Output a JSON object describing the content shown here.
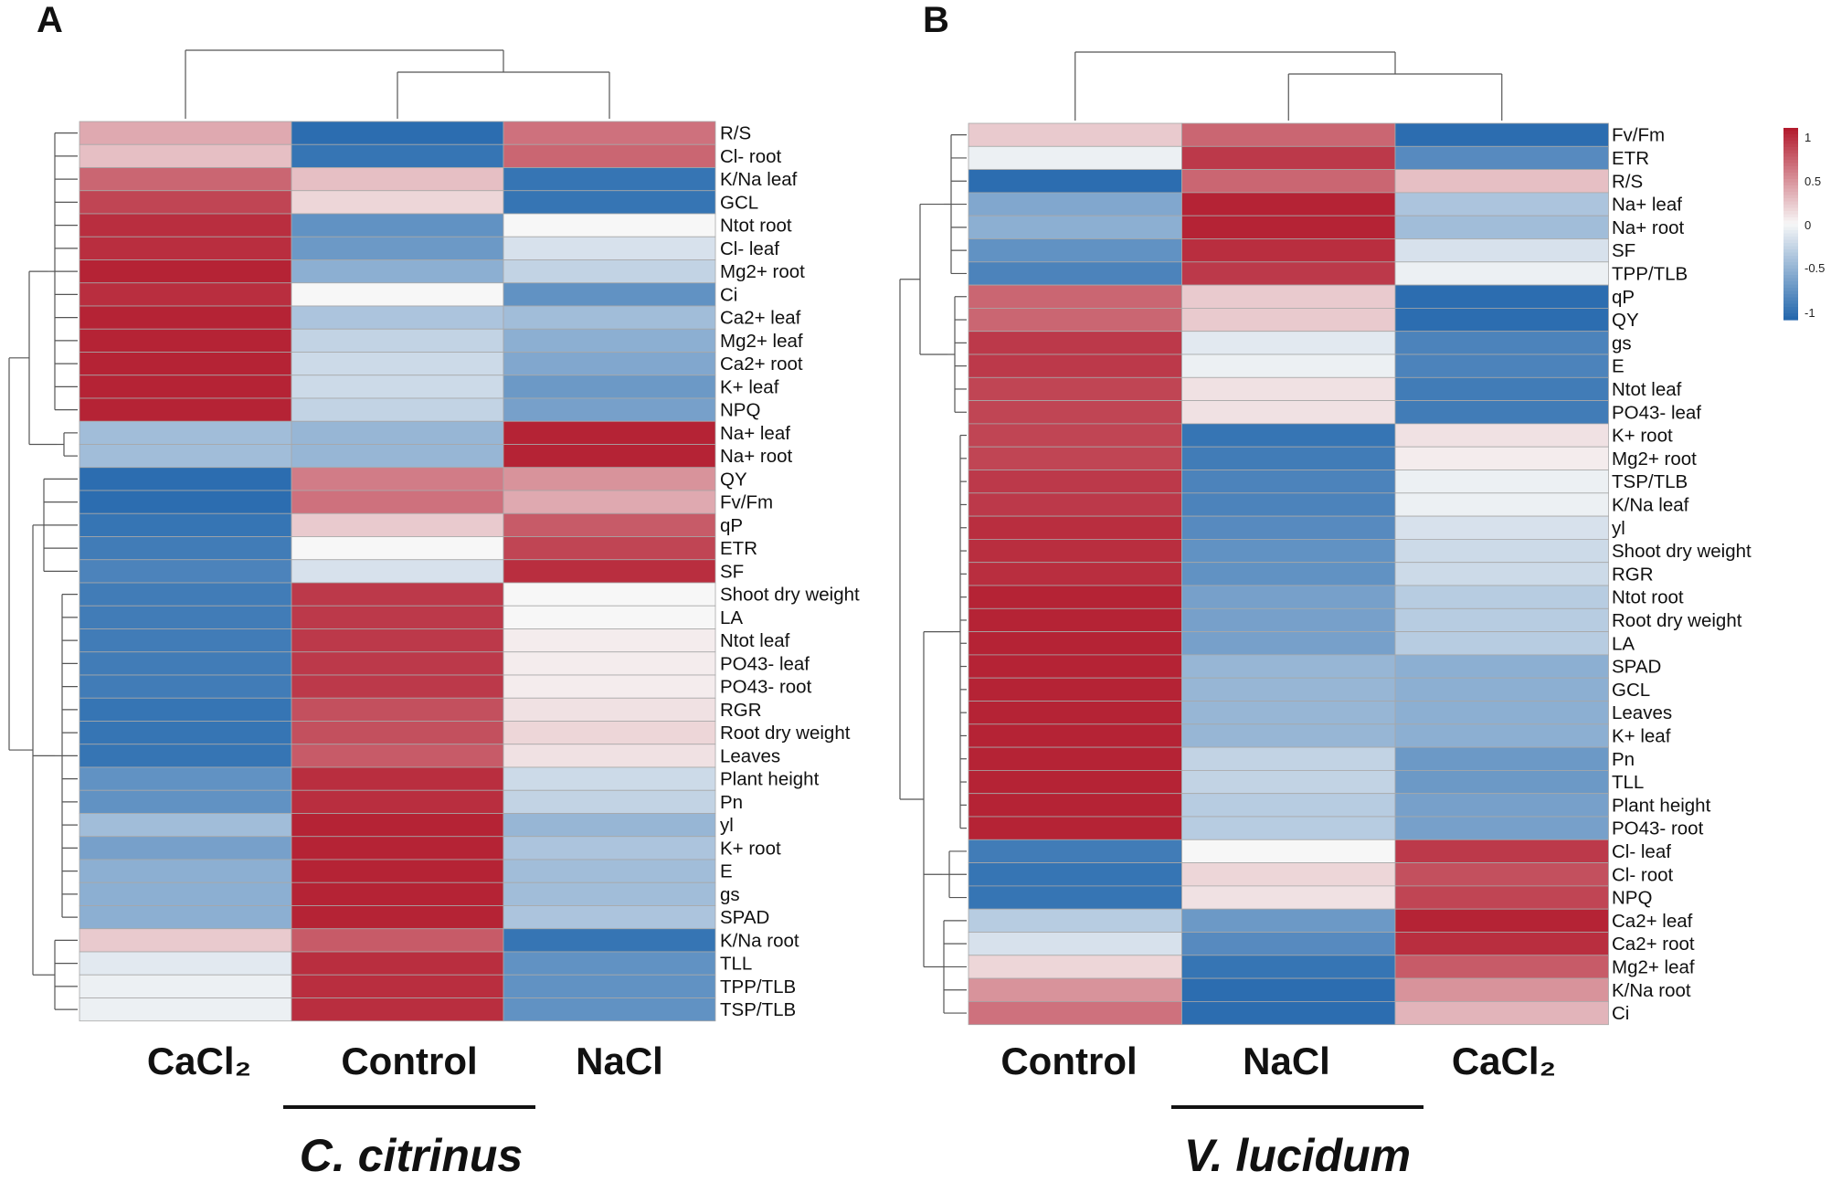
{
  "colors": {
    "low": "#2166ac",
    "mid": "#f7f7f7",
    "high": "#b2182b",
    "grid": "#a8a8a8"
  },
  "chart_data": [
    {
      "type": "heatmap",
      "panel": "A",
      "species": "C. citrinus",
      "columns": [
        "CaCl₂",
        "Control",
        "NaCl"
      ],
      "column_dendrogram": "(CaCl2,(Control,NaCl))",
      "value_range": [
        -1,
        1
      ],
      "rows": [
        {
          "label": "R/S",
          "values": [
            0.35,
            -0.95,
            0.6
          ]
        },
        {
          "label": "Cl- root",
          "values": [
            0.25,
            -0.9,
            0.65
          ]
        },
        {
          "label": "K/Na leaf",
          "values": [
            0.65,
            0.25,
            -0.9
          ]
        },
        {
          "label": "GCL",
          "values": [
            0.8,
            0.15,
            -0.9
          ]
        },
        {
          "label": "Ntot root",
          "values": [
            0.9,
            -0.7,
            0.0
          ]
        },
        {
          "label": "Cl- leaf",
          "values": [
            0.9,
            -0.65,
            -0.15
          ]
        },
        {
          "label": "Mg2+ root",
          "values": [
            0.95,
            -0.5,
            -0.25
          ]
        },
        {
          "label": "Ci",
          "values": [
            0.9,
            0.0,
            -0.7
          ]
        },
        {
          "label": "Ca2+ leaf",
          "values": [
            0.95,
            -0.35,
            -0.4
          ]
        },
        {
          "label": "Mg2+ leaf",
          "values": [
            0.95,
            -0.25,
            -0.5
          ]
        },
        {
          "label": "Ca2+ root",
          "values": [
            0.95,
            -0.2,
            -0.55
          ]
        },
        {
          "label": "K+ leaf",
          "values": [
            0.95,
            -0.2,
            -0.65
          ]
        },
        {
          "label": "NPQ",
          "values": [
            0.95,
            -0.25,
            -0.6
          ]
        },
        {
          "label": "Na+ leaf",
          "values": [
            -0.4,
            -0.45,
            0.95
          ]
        },
        {
          "label": "Na+  root",
          "values": [
            -0.4,
            -0.45,
            0.95
          ]
        },
        {
          "label": "QY",
          "values": [
            -0.95,
            0.55,
            0.45
          ]
        },
        {
          "label": "Fv/Fm",
          "values": [
            -0.95,
            0.6,
            0.35
          ]
        },
        {
          "label": "qP",
          "values": [
            -0.9,
            0.2,
            0.7
          ]
        },
        {
          "label": "ETR",
          "values": [
            -0.85,
            0.0,
            0.8
          ]
        },
        {
          "label": "SF",
          "values": [
            -0.8,
            -0.15,
            0.9
          ]
        },
        {
          "label": "Shoot dry weight",
          "values": [
            -0.85,
            0.85,
            0.0
          ]
        },
        {
          "label": "LA",
          "values": [
            -0.85,
            0.85,
            0.0
          ]
        },
        {
          "label": "Ntot leaf",
          "values": [
            -0.85,
            0.85,
            0.05
          ]
        },
        {
          "label": "PO43- leaf",
          "values": [
            -0.85,
            0.85,
            0.05
          ]
        },
        {
          "label": "PO43- root",
          "values": [
            -0.85,
            0.85,
            0.05
          ]
        },
        {
          "label": "RGR",
          "values": [
            -0.9,
            0.75,
            0.1
          ]
        },
        {
          "label": "Root dry weight",
          "values": [
            -0.9,
            0.75,
            0.15
          ]
        },
        {
          "label": "Leaves",
          "values": [
            -0.9,
            0.7,
            0.1
          ]
        },
        {
          "label": "Plant height",
          "values": [
            -0.7,
            0.9,
            -0.2
          ]
        },
        {
          "label": "Pn",
          "values": [
            -0.7,
            0.9,
            -0.25
          ]
        },
        {
          "label": "yl",
          "values": [
            -0.4,
            0.95,
            -0.45
          ]
        },
        {
          "label": "K+ root",
          "values": [
            -0.6,
            0.95,
            -0.35
          ]
        },
        {
          "label": "E",
          "values": [
            -0.5,
            0.95,
            -0.4
          ]
        },
        {
          "label": "gs",
          "values": [
            -0.5,
            0.95,
            -0.4
          ]
        },
        {
          "label": "SPAD",
          "values": [
            -0.5,
            0.95,
            -0.35
          ]
        },
        {
          "label": "K/Na root",
          "values": [
            0.2,
            0.7,
            -0.9
          ]
        },
        {
          "label": "TLL",
          "values": [
            -0.1,
            0.9,
            -0.7
          ]
        },
        {
          "label": "TPP/TLB",
          "values": [
            -0.05,
            0.9,
            -0.7
          ]
        },
        {
          "label": "TSP/TLB",
          "values": [
            -0.05,
            0.9,
            -0.7
          ]
        }
      ]
    },
    {
      "type": "heatmap",
      "panel": "B",
      "species": "V. lucidum",
      "columns": [
        "Control",
        "NaCl",
        "CaCl₂"
      ],
      "column_dendrogram": "(Control,(NaCl,CaCl2))",
      "value_range": [
        -1,
        1
      ],
      "legend": {
        "ticks": [
          "1",
          "0.5",
          "0",
          "-0.5",
          "-1"
        ]
      },
      "rows": [
        {
          "label": "Fv/Fm",
          "values": [
            0.2,
            0.65,
            -0.95
          ]
        },
        {
          "label": "ETR",
          "values": [
            -0.05,
            0.85,
            -0.75
          ]
        },
        {
          "label": "R/S",
          "values": [
            -0.95,
            0.65,
            0.25
          ]
        },
        {
          "label": "Na+ leaf",
          "values": [
            -0.55,
            0.95,
            -0.35
          ]
        },
        {
          "label": "Na+  root",
          "values": [
            -0.5,
            0.95,
            -0.4
          ]
        },
        {
          "label": "SF",
          "values": [
            -0.7,
            0.9,
            -0.15
          ]
        },
        {
          "label": "TPP/TLB",
          "values": [
            -0.8,
            0.85,
            -0.05
          ]
        },
        {
          "label": "qP",
          "values": [
            0.65,
            0.2,
            -0.95
          ]
        },
        {
          "label": "QY",
          "values": [
            0.65,
            0.2,
            -0.95
          ]
        },
        {
          "label": "gs",
          "values": [
            0.85,
            -0.1,
            -0.8
          ]
        },
        {
          "label": "E",
          "values": [
            0.85,
            -0.05,
            -0.8
          ]
        },
        {
          "label": "Ntot leaf",
          "values": [
            0.8,
            0.1,
            -0.85
          ]
        },
        {
          "label": "PO43- leaf",
          "values": [
            0.8,
            0.1,
            -0.85
          ]
        },
        {
          "label": "K+ root",
          "values": [
            0.8,
            -0.9,
            0.1
          ]
        },
        {
          "label": "Mg2+ root",
          "values": [
            0.8,
            -0.85,
            0.05
          ]
        },
        {
          "label": "TSP/TLB",
          "values": [
            0.85,
            -0.8,
            -0.05
          ]
        },
        {
          "label": "K/Na leaf",
          "values": [
            0.85,
            -0.8,
            -0.05
          ]
        },
        {
          "label": "yl",
          "values": [
            0.9,
            -0.75,
            -0.15
          ]
        },
        {
          "label": "Shoot dry weight",
          "values": [
            0.9,
            -0.7,
            -0.2
          ]
        },
        {
          "label": "RGR",
          "values": [
            0.9,
            -0.7,
            -0.2
          ]
        },
        {
          "label": "Ntot root",
          "values": [
            0.95,
            -0.6,
            -0.3
          ]
        },
        {
          "label": "Root dry weight",
          "values": [
            0.95,
            -0.6,
            -0.3
          ]
        },
        {
          "label": "LA",
          "values": [
            0.95,
            -0.6,
            -0.3
          ]
        },
        {
          "label": "SPAD",
          "values": [
            0.95,
            -0.45,
            -0.5
          ]
        },
        {
          "label": "GCL",
          "values": [
            0.95,
            -0.45,
            -0.5
          ]
        },
        {
          "label": "Leaves",
          "values": [
            0.95,
            -0.45,
            -0.5
          ]
        },
        {
          "label": "K+ leaf",
          "values": [
            0.95,
            -0.45,
            -0.5
          ]
        },
        {
          "label": "Pn",
          "values": [
            0.95,
            -0.25,
            -0.65
          ]
        },
        {
          "label": "TLL",
          "values": [
            0.95,
            -0.25,
            -0.65
          ]
        },
        {
          "label": "Plant height",
          "values": [
            0.95,
            -0.3,
            -0.6
          ]
        },
        {
          "label": "PO43- root",
          "values": [
            0.95,
            -0.3,
            -0.6
          ]
        },
        {
          "label": "Cl- leaf",
          "values": [
            -0.85,
            0.0,
            0.85
          ]
        },
        {
          "label": "Cl- root",
          "values": [
            -0.9,
            0.15,
            0.75
          ]
        },
        {
          "label": "NPQ",
          "values": [
            -0.9,
            0.1,
            0.8
          ]
        },
        {
          "label": "Ca2+ leaf",
          "values": [
            -0.3,
            -0.65,
            0.95
          ]
        },
        {
          "label": "Ca2+ root",
          "values": [
            -0.15,
            -0.75,
            0.9
          ]
        },
        {
          "label": "Mg2+ leaf",
          "values": [
            0.15,
            -0.9,
            0.7
          ]
        },
        {
          "label": "K/Na root",
          "values": [
            0.45,
            -0.95,
            0.45
          ]
        },
        {
          "label": "Ci",
          "values": [
            0.6,
            -0.95,
            0.3
          ]
        }
      ]
    }
  ]
}
